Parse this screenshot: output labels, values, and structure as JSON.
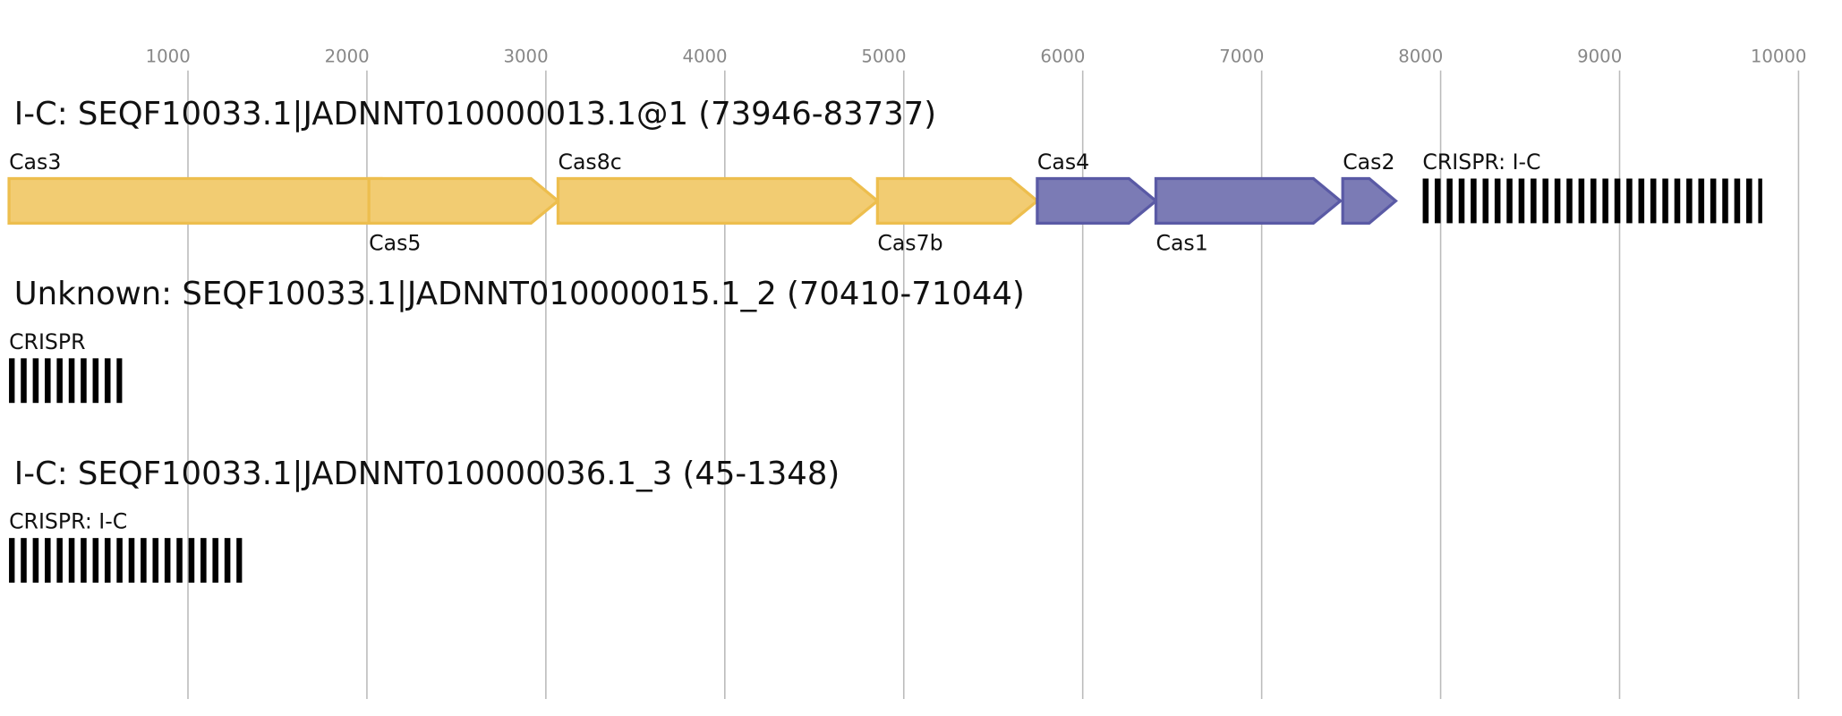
{
  "axis": {
    "xlim": [
      0,
      10000
    ],
    "ticks": [
      1000,
      2000,
      3000,
      4000,
      5000,
      6000,
      7000,
      8000,
      9000,
      10000
    ]
  },
  "records": [
    {
      "title": "I-C: SEQF10033.1|JADNNT010000013.1@1 (73946-83737)",
      "features": [
        {
          "label": "Cas3",
          "kind": "gene",
          "color": "#f2cc72",
          "stroke": "#edbe4e",
          "start": 0,
          "end": 2236,
          "side": "above"
        },
        {
          "label": "Cas5",
          "kind": "gene",
          "color": "#f2cc72",
          "stroke": "#edbe4e",
          "start": 2011,
          "end": 3068,
          "side": "below"
        },
        {
          "label": "Cas8c",
          "kind": "gene",
          "color": "#f2cc72",
          "stroke": "#edbe4e",
          "start": 3068,
          "end": 4853,
          "side": "above"
        },
        {
          "label": "Cas7b",
          "kind": "gene",
          "color": "#f2cc72",
          "stroke": "#edbe4e",
          "start": 4853,
          "end": 5746,
          "side": "below"
        },
        {
          "label": "Cas4",
          "kind": "gene",
          "color": "#7b7bb5",
          "stroke": "#5a5aa5",
          "start": 5746,
          "end": 6409,
          "side": "above"
        },
        {
          "label": "Cas1",
          "kind": "gene",
          "color": "#7b7bb5",
          "stroke": "#5a5aa5",
          "start": 6409,
          "end": 7440,
          "side": "below"
        },
        {
          "label": "Cas2",
          "kind": "gene",
          "color": "#7b7bb5",
          "stroke": "#5a5aa5",
          "start": 7453,
          "end": 7749,
          "side": "above"
        },
        {
          "label": "CRISPR: I-C",
          "kind": "crispr",
          "start": 7899,
          "end": 9797,
          "side": "above"
        }
      ]
    },
    {
      "title": "Unknown: SEQF10033.1|JADNNT010000015.1_2 (70410-71044)",
      "features": [
        {
          "label": "CRISPR",
          "kind": "crispr",
          "start": 0,
          "end": 632,
          "side": "above"
        }
      ]
    },
    {
      "title": "I-C: SEQF10033.1|JADNNT010000036.1_3 (45-1348)",
      "features": [
        {
          "label": "CRISPR: I-C",
          "kind": "crispr",
          "start": 0,
          "end": 1302,
          "side": "above"
        }
      ]
    }
  ]
}
